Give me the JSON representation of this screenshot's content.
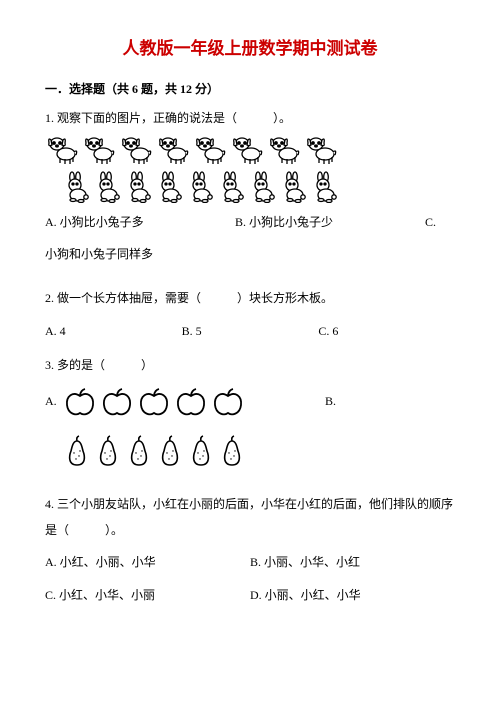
{
  "title": "人教版一年级上册数学期中测试卷",
  "section1": {
    "header": "一．选择题（共 6 题，共 12 分）",
    "q1": {
      "text": "1. 观察下面的图片，正确的说法是（　　　）。",
      "dogCount": 8,
      "rabbitCount": 9,
      "optA": "A. 小狗比小兔子多",
      "optB": "B. 小狗比小兔子少",
      "optC": "C.",
      "optC2": "小狗和小兔子同样多",
      "colors": {
        "stroke": "#000000",
        "fill": "#ffffff"
      }
    },
    "q2": {
      "text": "2. 做一个长方体抽屉，需要（　　　）块长方形木板。",
      "optA": "A. 4",
      "optB": "B. 5",
      "optC": "C. 6"
    },
    "q3": {
      "text": "3. 多的是（　　　）",
      "appleCount": 5,
      "pearCount": 6,
      "optA": "A.",
      "optB": "B.",
      "colors": {
        "stroke": "#000000",
        "fill": "#ffffff"
      }
    },
    "q4": {
      "text": "4. 三个小朋友站队，小红在小丽的后面，小华在小红的后面，他们排队的顺序是（　　　）。",
      "optA": "A. 小红、小丽、小华",
      "optB": "B. 小丽、小华、小红",
      "optC": "C. 小红、小华、小丽",
      "optD": "D. 小丽、小红、小华"
    }
  }
}
